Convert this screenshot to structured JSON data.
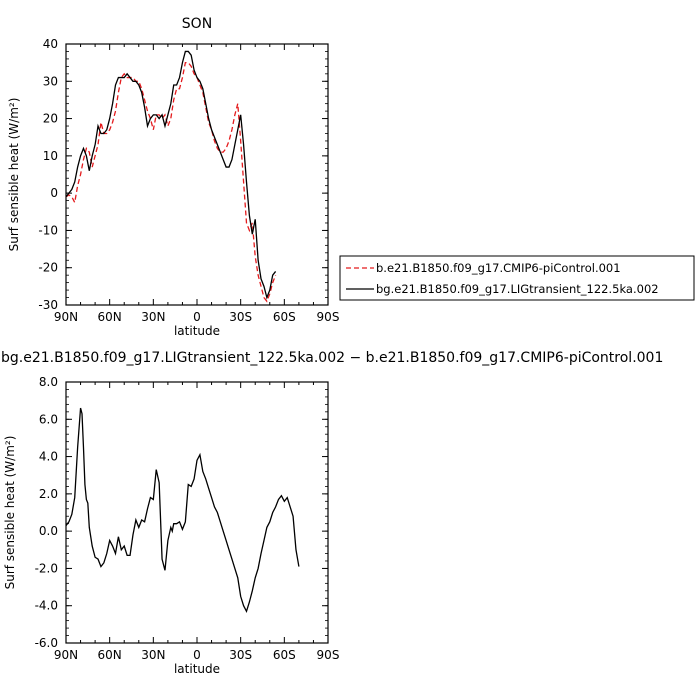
{
  "chart_data": [
    {
      "type": "line",
      "title": "SON",
      "xlabel": "latitude",
      "ylabel": "Surf sensible heat (W/m²)",
      "xlim": [
        90,
        -90
      ],
      "ylim": [
        -30,
        40
      ],
      "xticks": [
        90,
        60,
        30,
        0,
        -30,
        -60,
        -90
      ],
      "xtick_labels": [
        "90N",
        "60N",
        "30N",
        "0",
        "30S",
        "60S",
        "90S"
      ],
      "yticks": [
        -30,
        -20,
        -10,
        0,
        10,
        20,
        30,
        40
      ],
      "ytick_labels": [
        "-30",
        "-20",
        "-10",
        "0",
        "10",
        "20",
        "30",
        "40"
      ],
      "legend_position": "right",
      "series": [
        {
          "name": "b.e21.B1850.f09_g17.CMIP6-piControl.001",
          "color": "#e41a1c",
          "dash": "dashed",
          "x": [
            90,
            88,
            86,
            84,
            82,
            80,
            78,
            76,
            74,
            72,
            70,
            68,
            66,
            64,
            62,
            60,
            58,
            56,
            54,
            52,
            50,
            48,
            46,
            44,
            42,
            40,
            38,
            36,
            34,
            32,
            30,
            28,
            26,
            24,
            22,
            20,
            18,
            16,
            14,
            12,
            10,
            8,
            6,
            4,
            2,
            0,
            -2,
            -4,
            -6,
            -8,
            -10,
            -12,
            -14,
            -16,
            -18,
            -20,
            -22,
            -24,
            -26,
            -28,
            -30,
            -32,
            -34,
            -36,
            -38,
            -40,
            -42,
            -44,
            -46,
            -48,
            -50,
            -52,
            -54,
            -56,
            -58,
            -60,
            -62,
            -64,
            -66,
            -68,
            -70,
            -72,
            -74,
            -76,
            -78,
            -80,
            -82,
            -84,
            -86,
            -88,
            -90
          ],
          "y": [
            -1,
            -0.5,
            -1,
            -2.5,
            2,
            5,
            9,
            12,
            11,
            7,
            10,
            13,
            19,
            16,
            16,
            17,
            19,
            22,
            27,
            31,
            32,
            31,
            31,
            31,
            30,
            30,
            28,
            25,
            22,
            20,
            17,
            21,
            21,
            20,
            21,
            18,
            20,
            25,
            28,
            28,
            31,
            35,
            35,
            34,
            32,
            31,
            29,
            27,
            23,
            19,
            17,
            14,
            12,
            11,
            11,
            12,
            14,
            17,
            21,
            24,
            14,
            3,
            -8,
            -10,
            -8,
            -17,
            -22,
            -25,
            -28,
            -29,
            -27,
            -24,
            -22,
            null,
            null,
            null,
            null,
            null,
            null,
            null,
            null,
            null,
            null,
            null,
            null,
            null,
            null,
            null,
            null,
            null,
            null
          ]
        },
        {
          "name": "bg.e21.B1850.f09_g17.LIGtransient_122.5ka.002",
          "color": "#000000",
          "dash": "solid",
          "x": [
            90,
            88,
            86,
            84,
            82,
            80,
            78,
            76,
            74,
            72,
            70,
            68,
            66,
            64,
            62,
            60,
            58,
            56,
            54,
            52,
            50,
            48,
            46,
            44,
            42,
            40,
            38,
            36,
            34,
            32,
            30,
            28,
            26,
            24,
            22,
            20,
            18,
            16,
            14,
            12,
            10,
            8,
            6,
            4,
            2,
            0,
            -2,
            -4,
            -6,
            -8,
            -10,
            -12,
            -14,
            -16,
            -18,
            -20,
            -22,
            -24,
            -26,
            -28,
            -30,
            -32,
            -34,
            -36,
            -38,
            -40,
            -42,
            -44,
            -46,
            -48,
            -50,
            -52,
            -54,
            -56,
            -58,
            -60,
            -62,
            -64,
            -66,
            -68,
            -70,
            -72,
            -74,
            -76,
            -78,
            -80,
            -82,
            -84,
            -86,
            -88,
            -90
          ],
          "y": [
            -1,
            0,
            1,
            3,
            7,
            10,
            12,
            10,
            6,
            10,
            13,
            18,
            16,
            16,
            17,
            20,
            24,
            29,
            31,
            31,
            31,
            32,
            31,
            30,
            30,
            29,
            27,
            23,
            18,
            20,
            21,
            21,
            20,
            21,
            18,
            21,
            24,
            29,
            29,
            31,
            35,
            38,
            38,
            37,
            33,
            31,
            30,
            28,
            24,
            20,
            17,
            15,
            13,
            11,
            9,
            7,
            7,
            9,
            13,
            17,
            21,
            13,
            3,
            -6,
            -11,
            -7,
            -18,
            -23,
            -25,
            -28,
            -26,
            -22,
            -21,
            null,
            null,
            null,
            null,
            null,
            null,
            null,
            null,
            null,
            null,
            null,
            null,
            null,
            null,
            null,
            null,
            null,
            null
          ]
        }
      ]
    },
    {
      "type": "line",
      "title": "bg.e21.B1850.f09_g17.LIGtransient_122.5ka.002 − b.e21.B1850.f09_g17.CMIP6-piControl.001",
      "xlabel": "latitude",
      "ylabel": "Surf sensible heat (W/m²)",
      "xlim": [
        90,
        -90
      ],
      "ylim": [
        -6,
        8
      ],
      "xticks": [
        90,
        60,
        30,
        0,
        -30,
        -60,
        -90
      ],
      "xtick_labels": [
        "90N",
        "60N",
        "30N",
        "0",
        "30S",
        "60S",
        "90S"
      ],
      "yticks": [
        -6,
        -4,
        -2,
        0,
        2,
        4,
        6,
        8
      ],
      "ytick_labels": [
        "-6.0",
        "-4.0",
        "-2.0",
        "0.0",
        "2.0",
        "4.0",
        "6.0",
        "8.0"
      ],
      "series": [
        {
          "name": "",
          "color": "#000000",
          "dash": "solid",
          "x": [
            90,
            88,
            86,
            84,
            82,
            80,
            79,
            78,
            77,
            76,
            75,
            74,
            72,
            70,
            68,
            66,
            64,
            62,
            60,
            58,
            56,
            54,
            52,
            50,
            48,
            46,
            44,
            42,
            40,
            38,
            36,
            34,
            32,
            30,
            28,
            26,
            24,
            22,
            20,
            18,
            17,
            16,
            14,
            12,
            10,
            8,
            6,
            4,
            2,
            0,
            -2,
            -4,
            -6,
            -8,
            -10,
            -12,
            -14,
            -16,
            -18,
            -20,
            -22,
            -24,
            -26,
            -28,
            -30,
            -32,
            -34,
            -36,
            -38,
            -40,
            -42,
            -44,
            -46,
            -48,
            -50,
            -52,
            -54,
            -56,
            -58,
            -60,
            -62,
            -64,
            -66,
            -68,
            -70,
            -72,
            -74,
            -76,
            -78,
            -80,
            -82,
            -84,
            -86,
            -88,
            -89,
            -90
          ],
          "y": [
            0.3,
            0.5,
            0.9,
            1.8,
            4.5,
            6.6,
            6.3,
            4.5,
            2.5,
            1.7,
            1.5,
            0.2,
            -0.8,
            -1.4,
            -1.5,
            -1.9,
            -1.7,
            -1.2,
            -0.5,
            -0.8,
            -1.2,
            -0.3,
            -1.0,
            -0.8,
            -1.3,
            -1.3,
            -0.2,
            0.6,
            0.2,
            0.6,
            0.5,
            1.2,
            1.8,
            1.7,
            3.3,
            2.6,
            -1.5,
            -2.1,
            -0.5,
            0.2,
            0.0,
            0.4,
            0.4,
            0.5,
            0.1,
            0.5,
            2.5,
            2.4,
            2.8,
            3.8,
            4.1,
            3.2,
            2.8,
            2.3,
            1.8,
            1.3,
            1.0,
            0.5,
            0.0,
            -0.5,
            -1.0,
            -1.5,
            -2.0,
            -2.5,
            -3.5,
            -4.0,
            -4.3,
            -3.8,
            -3.2,
            -2.5,
            -2.0,
            -1.2,
            -0.5,
            0.2,
            0.5,
            1.0,
            1.3,
            1.7,
            1.9,
            1.6,
            1.8,
            1.3,
            0.8,
            -1.0,
            -1.9,
            null,
            null,
            null,
            null,
            null,
            null,
            null,
            null,
            null,
            null,
            null
          ]
        }
      ]
    }
  ]
}
